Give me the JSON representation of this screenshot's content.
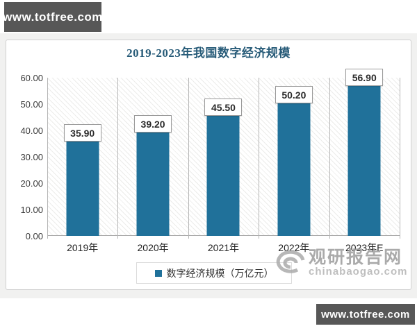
{
  "watermark_top": {
    "label": "www.totfree.com"
  },
  "watermark_bottom": {
    "label": "www.totfree.com"
  },
  "chart_data": {
    "type": "bar",
    "title": "2019-2023年我国数字经济规模",
    "categories": [
      "2019年",
      "2020年",
      "2021年",
      "2022年",
      "2023年E"
    ],
    "values": [
      35.9,
      39.2,
      45.5,
      50.2,
      56.9
    ],
    "value_labels": [
      "35.90",
      "39.20",
      "45.50",
      "50.20",
      "56.90"
    ],
    "series": [
      {
        "name": "数字经济规模（万亿元）",
        "values": [
          35.9,
          39.2,
          45.5,
          50.2,
          56.9
        ]
      }
    ],
    "xlabel": "",
    "ylabel": "",
    "ylim": [
      0,
      60
    ],
    "ytick_labels": [
      "60.00",
      "50.00",
      "40.00",
      "30.00",
      "20.00",
      "10.00",
      "0.00"
    ],
    "grid": false,
    "legend_position": "bottom",
    "legend": [
      "数字经济规模（万亿元）"
    ],
    "bar_color": "#20719A",
    "title_color": "#275B78",
    "plot_background": "diagonal-hatch"
  },
  "site_watermark": {
    "name": "观研报告网",
    "domain": "chinabaogao.com"
  }
}
